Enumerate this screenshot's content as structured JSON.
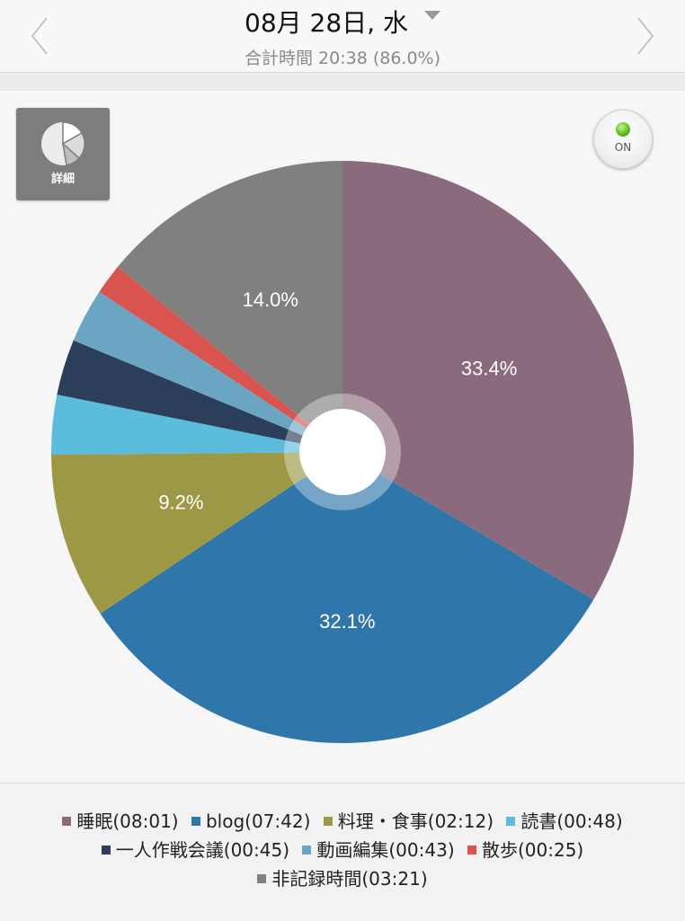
{
  "header": {
    "title": "08月 28日, 水",
    "subtitle": "合計時間 20:38 (86.0%)"
  },
  "controls": {
    "detail_label": "詳細",
    "toggle_label": "ON"
  },
  "chart_data": {
    "type": "pie",
    "slices": [
      {
        "name": "睡眠",
        "time": "08:01",
        "percent": 33.4,
        "color": "#8a6a7d",
        "label": "33.4%"
      },
      {
        "name": "blog",
        "time": "07:42",
        "percent": 32.1,
        "color": "#2f76ab",
        "label": "32.1%"
      },
      {
        "name": "料理・食事",
        "time": "02:12",
        "percent": 9.2,
        "color": "#9c9846",
        "label": "9.2%"
      },
      {
        "name": "読書",
        "time": "00:48",
        "percent": 3.3,
        "color": "#5bbcdc",
        "label": ""
      },
      {
        "name": "一人作戦会議",
        "time": "00:45",
        "percent": 3.1,
        "color": "#2c3f5a",
        "label": ""
      },
      {
        "name": "動画編集",
        "time": "00:43",
        "percent": 3.0,
        "color": "#6aa6c4",
        "label": ""
      },
      {
        "name": "散歩",
        "time": "00:25",
        "percent": 1.7,
        "color": "#d9534f",
        "label": ""
      },
      {
        "name": "非記録時間",
        "time": "03:21",
        "percent": 14.0,
        "color": "#808080",
        "label": "14.0%"
      }
    ]
  },
  "legend": {
    "items": [
      {
        "text": "睡眠(08:01)",
        "color": "#8a6a7d"
      },
      {
        "text": "blog(07:42)",
        "color": "#2f76ab"
      },
      {
        "text": "料理・食事(02:12)",
        "color": "#9c9846"
      },
      {
        "text": "読書(00:48)",
        "color": "#5bbcdc"
      },
      {
        "text": "一人作戦会議(00:45)",
        "color": "#2c3f5a"
      },
      {
        "text": "動画編集(00:43)",
        "color": "#6aa6c4"
      },
      {
        "text": "散歩(00:25)",
        "color": "#d9534f"
      },
      {
        "text": "非記録時間(03:21)",
        "color": "#808080"
      }
    ]
  }
}
